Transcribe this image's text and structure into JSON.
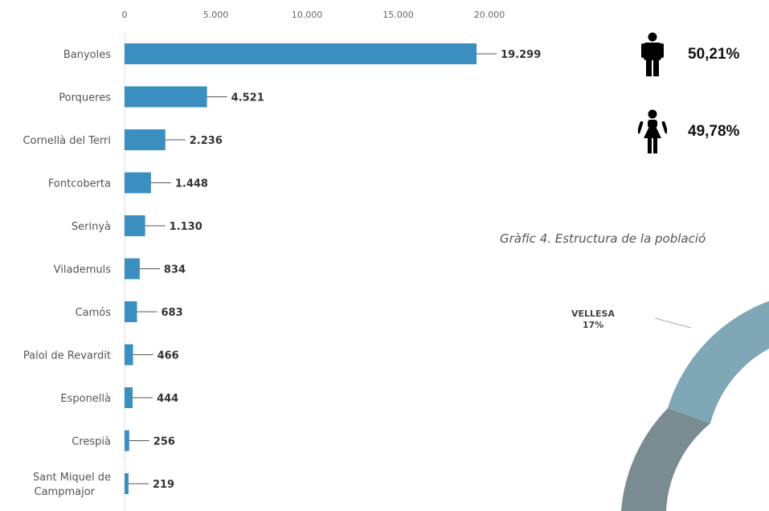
{
  "chart_data": [
    {
      "type": "bar",
      "orientation": "horizontal",
      "categories": [
        "Banyoles",
        "Porqueres",
        "Cornellà del Terri",
        "Fontcoberta",
        "Serinyà",
        "Vilademuls",
        "Camós",
        "Palol de Revardit",
        "Esponellà",
        "Crespià",
        "Sant Miquel de Campmajor"
      ],
      "values": [
        19299,
        4521,
        2236,
        1448,
        1130,
        834,
        683,
        466,
        444,
        256,
        219
      ],
      "value_labels": [
        "19.299",
        "4.521",
        "2.236",
        "1.448",
        "1.130",
        "834",
        "683",
        "466",
        "444",
        "256",
        "219"
      ],
      "xlim": [
        0,
        20000
      ],
      "x_ticks": [
        0,
        5000,
        10000,
        15000,
        20000
      ],
      "x_tick_labels": [
        "0",
        "5.000",
        "10.000",
        "15.000",
        "20.000"
      ],
      "axis_position": "top",
      "bar_color": "#3b8fc0",
      "grid": false
    },
    {
      "type": "table",
      "rows": [
        {
          "icon": "male-icon",
          "value": "50,21%"
        },
        {
          "icon": "female-icon",
          "value": "49,78%"
        }
      ]
    },
    {
      "type": "pie",
      "variant": "donut",
      "title": "Gràfic 4. Estructura de la població",
      "slices": [
        {
          "label": "VELLESA",
          "value": 17,
          "value_label": "17%",
          "color": "#7fa7b5"
        }
      ],
      "other_colors": [
        "#7a8c92"
      ]
    }
  ]
}
